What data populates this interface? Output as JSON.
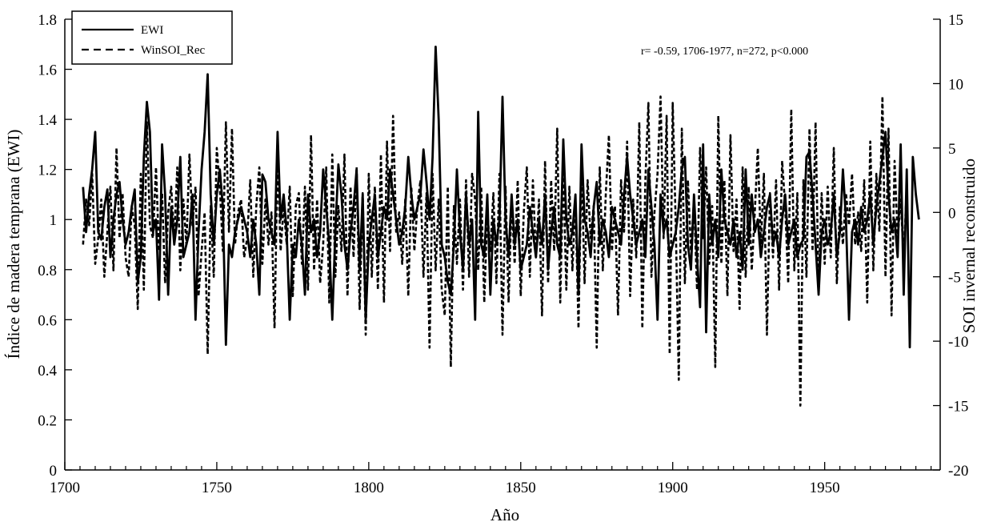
{
  "chart_data": {
    "type": "line",
    "title": "",
    "xlabel": "Año",
    "ylabel_left": "Índice de madera temprana (EWI)",
    "ylabel_right": "SOI invernal reconstruido",
    "annotation": "r= -0.59, 1706-1977, n=272, p<0.000",
    "xlim": [
      1700,
      1988
    ],
    "ylim_left": [
      0,
      1.8
    ],
    "ylim_right": [
      -20,
      15
    ],
    "x_ticks": [
      1700,
      1750,
      1800,
      1850,
      1900,
      1950
    ],
    "y_left_ticks": [
      0,
      0.2,
      0.4,
      0.6,
      0.8,
      1,
      1.2,
      1.4,
      1.6,
      1.8
    ],
    "y_right_ticks": [
      -20,
      -15,
      -10,
      -5,
      0,
      5,
      10,
      15
    ],
    "y_left_tick_labels": [
      "0",
      "0.2",
      "0.4",
      "0.6",
      "0.8",
      "1",
      "1.2",
      "1.4",
      "1.6",
      "1.8"
    ],
    "y_right_tick_labels": [
      "-20",
      "-15",
      "-10",
      "-5",
      "0",
      "5",
      "10",
      "15"
    ],
    "grid": false,
    "legend_position": "top-left",
    "series": [
      {
        "name": "EWI",
        "axis": "left",
        "style": "solid",
        "x_start": 1706,
        "values": [
          1.13,
          0.95,
          1.1,
          1.2,
          1.35,
          0.95,
          0.92,
          1.05,
          1.12,
          0.85,
          1.0,
          1.1,
          1.15,
          1.0,
          0.9,
          0.95,
          1.05,
          1.12,
          0.75,
          0.85,
          1.25,
          1.47,
          1.35,
          0.95,
          1.0,
          0.68,
          1.3,
          1.1,
          0.7,
          1.05,
          0.9,
          1.0,
          1.25,
          0.85,
          0.9,
          0.95,
          1.1,
          0.6,
          0.95,
          1.2,
          1.35,
          1.58,
          1.1,
          0.9,
          1.1,
          1.2,
          1.05,
          0.5,
          0.9,
          0.85,
          0.95,
          1.0,
          1.05,
          1.0,
          0.95,
          0.85,
          1.0,
          0.9,
          0.7,
          1.18,
          1.15,
          1.0,
          0.95,
          0.9,
          1.35,
          1.0,
          1.1,
          0.95,
          0.6,
          0.9,
          0.85,
          1.0,
          0.9,
          0.7,
          1.1,
          0.95,
          1.0,
          0.85,
          0.95,
          1.2,
          1.05,
          0.9,
          0.6,
          0.95,
          1.22,
          1.1,
          0.9,
          0.8,
          0.95,
          1.05,
          1.2,
          0.8,
          1.1,
          0.6,
          0.9,
          1.0,
          1.1,
          0.85,
          0.95,
          1.05,
          1.0,
          1.2,
          1.1,
          1.0,
          0.9,
          0.95,
          1.05,
          1.25,
          1.1,
          1.0,
          1.05,
          1.1,
          1.28,
          1.15,
          1.0,
          1.25,
          1.69,
          1.4,
          0.9,
          0.85,
          0.75,
          0.7,
          0.9,
          1.2,
          0.95,
          0.8,
          1.1,
          0.9,
          1.0,
          0.6,
          1.43,
          0.9,
          0.85,
          1.1,
          0.7,
          1.0,
          0.9,
          1.0,
          1.49,
          1.0,
          0.85,
          1.1,
          0.9,
          1.0,
          0.8,
          0.85,
          0.9,
          1.05,
          0.95,
          0.85,
          1.0,
          0.9,
          1.1,
          0.8,
          0.95,
          1.05,
          0.9,
          0.85,
          1.32,
          1.0,
          0.9,
          0.95,
          1.1,
          0.7,
          1.3,
          1.0,
          0.95,
          0.85,
          1.05,
          1.15,
          0.9,
          1.0,
          0.95,
          0.85,
          1.05,
          1.0,
          0.95,
          0.9,
          1.1,
          1.25,
          1.1,
          1.0,
          0.9,
          0.95,
          1.0,
          0.85,
          1.2,
          1.05,
          0.9,
          0.6,
          1.1,
          0.95,
          1.0,
          0.85,
          0.9,
          0.95,
          1.05,
          1.2,
          1.25,
          0.9,
          0.8,
          1.1,
          0.85,
          0.65,
          1.3,
          0.55,
          1.1,
          0.9,
          1.0,
          0.85,
          1.2,
          1.0,
          0.95,
          0.9,
          1.0,
          0.85,
          0.95,
          0.8,
          1.2,
          0.9,
          1.1,
          0.95,
          1.0,
          0.85,
          0.95,
          1.05,
          1.1,
          0.9,
          0.95,
          0.85,
          1.0,
          1.1,
          0.9,
          0.95,
          1.0,
          0.85,
          0.9,
          0.92,
          1.25,
          1.27,
          1.1,
          0.9,
          0.7,
          0.95,
          1.0,
          0.9,
          0.95,
          1.1,
          0.85,
          0.95,
          1.2,
          1.0,
          0.6,
          0.95,
          1.0,
          0.9,
          1.05,
          0.95,
          1.0,
          1.1,
          0.9,
          1.05,
          1.15,
          1.25,
          1.35,
          1.1,
          0.95,
          1.0,
          0.85,
          1.3,
          0.7,
          1.2,
          0.49,
          1.25,
          1.1,
          1.0
        ]
      },
      {
        "name": "WinSOI_Rec",
        "axis": "right",
        "style": "dashed",
        "x_start": 1706,
        "values": [
          -2.5,
          1.0,
          -1.0,
          3.0,
          -4.0,
          -2.0,
          1.0,
          -5.0,
          -1.5,
          2.0,
          -4.5,
          5.0,
          -2.0,
          1.5,
          -3.5,
          -5.0,
          0.5,
          -1.0,
          -7.5,
          3.0,
          -6.0,
          7.0,
          -1.0,
          -2.0,
          3.5,
          -3.0,
          1.5,
          -5.5,
          0.0,
          2.0,
          -2.0,
          3.5,
          -4.5,
          1.0,
          -2.5,
          4.5,
          -1.0,
          2.0,
          -6.5,
          -3.0,
          0.0,
          -11.0,
          0.5,
          -5.0,
          5.0,
          2.0,
          -3.0,
          7.0,
          -1.5,
          6.5,
          -2.5,
          0.0,
          1.0,
          -3.5,
          -2.0,
          2.5,
          -5.0,
          0.5,
          3.5,
          -4.0,
          1.0,
          -2.5,
          0.0,
          -9.0,
          4.5,
          -3.0,
          0.5,
          -2.5,
          2.0,
          -6.5,
          0.5,
          1.5,
          -4.0,
          2.0,
          -6.0,
          6.0,
          -4.5,
          1.0,
          -5.5,
          -2.5,
          3.5,
          -7.0,
          4.5,
          -5.0,
          0.5,
          -3.0,
          4.5,
          -6.5,
          2.0,
          -3.5,
          3.5,
          -7.5,
          1.5,
          -9.5,
          3.0,
          -5.0,
          2.0,
          -6.0,
          4.5,
          -7.0,
          5.5,
          -3.0,
          7.5,
          -1.5,
          0.0,
          -4.0,
          1.0,
          -6.5,
          2.0,
          -3.0,
          0.5,
          2.5,
          -5.0,
          1.5,
          -10.5,
          3.0,
          -4.5,
          1.0,
          -6.0,
          -8.0,
          2.0,
          -12.0,
          0.5,
          -4.0,
          1.0,
          -6.0,
          2.5,
          -5.0,
          3.0,
          1.0,
          -4.5,
          2.0,
          -7.0,
          0.0,
          -3.0,
          1.5,
          -5.5,
          3.0,
          -9.5,
          2.0,
          -7.0,
          1.0,
          -4.0,
          2.5,
          -6.5,
          0.0,
          3.5,
          -5.0,
          2.5,
          -3.5,
          1.0,
          -8.0,
          4.0,
          -5.5,
          2.5,
          -3.0,
          6.5,
          -7.0,
          3.5,
          -6.0,
          2.0,
          -4.5,
          1.0,
          -9.0,
          4.0,
          -5.5,
          2.5,
          -2.0,
          0.5,
          -10.5,
          3.5,
          -4.5,
          1.5,
          6.0,
          -3.0,
          0.5,
          -8.0,
          2.5,
          -1.5,
          5.5,
          -6.5,
          1.0,
          -3.5,
          7.0,
          -9.0,
          2.5,
          8.5,
          -5.0,
          0.0,
          3.0,
          9.0,
          -2.0,
          7.5,
          -11.0,
          8.5,
          -1.0,
          -13.0,
          6.5,
          -5.5,
          2.5,
          -3.0,
          1.0,
          -6.0,
          5.0,
          -2.0,
          3.5,
          -4.0,
          0.5,
          -12.0,
          7.5,
          -4.0,
          2.5,
          -6.5,
          6.0,
          -3.0,
          1.0,
          -7.5,
          3.5,
          -5.0,
          2.0,
          -4.5,
          0.0,
          5.0,
          -2.5,
          3.0,
          -9.5,
          1.5,
          -3.5,
          2.5,
          -6.0,
          4.0,
          0.5,
          -5.5,
          8.0,
          -4.5,
          1.5,
          -15.0,
          2.5,
          -5.0,
          6.5,
          -3.0,
          7.0,
          -6.0,
          1.5,
          -4.0,
          2.0,
          -3.5,
          5.0,
          -5.5,
          0.5,
          -2.5,
          1.5,
          -1.0,
          3.0,
          -2.5,
          0.0,
          -3.0,
          2.5,
          -7.0,
          5.5,
          -4.5,
          3.0,
          -1.5,
          9.0,
          -5.0,
          6.5,
          -8.0,
          4.0,
          -2.0,
          1.0,
          -3.5,
          2.0
        ]
      }
    ]
  }
}
